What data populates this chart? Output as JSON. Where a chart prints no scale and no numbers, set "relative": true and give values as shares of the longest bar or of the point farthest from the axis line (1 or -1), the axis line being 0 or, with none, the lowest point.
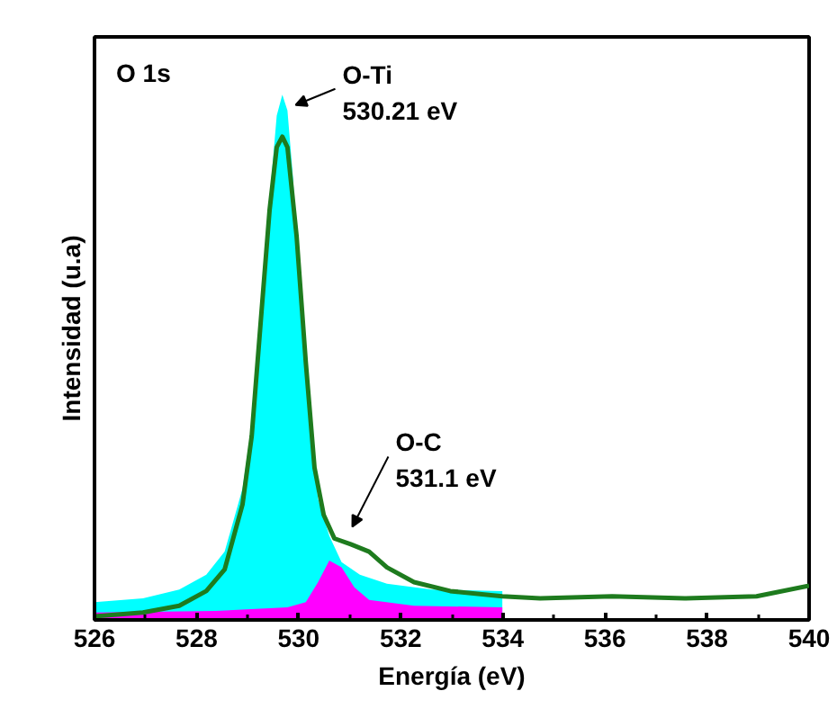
{
  "chart_data": {
    "type": "area",
    "relative": true,
    "xlabel": "Energía (eV)",
    "ylabel": "Intensidad (u.a)",
    "xlim": [
      526,
      540
    ],
    "xticks": [
      526,
      {
        "value": 527,
        "label": null
      },
      528,
      {
        "value": 529,
        "label": null
      },
      530,
      {
        "value": 531,
        "label": null
      },
      532,
      {
        "value": 533,
        "label": null
      },
      534,
      {
        "value": 535,
        "label": null
      },
      536,
      {
        "value": 537,
        "label": null
      },
      538,
      {
        "value": 539,
        "label": null
      },
      540
    ],
    "grid": false,
    "tick_labels": "x",
    "annotations": [
      "O 1s",
      {
        "text": "O-Ti\n530.21 eV",
        "x": 529.8,
        "y": 0.97
      },
      {
        "text": "O-C\n531.1 eV",
        "x": 530.84,
        "y": 0.15
      }
    ],
    "series": [
      {
        "color": "#00ffff",
        "x": [
          526.0,
          526.95,
          527.66,
          528.19,
          528.55,
          528.9,
          529.08,
          529.25,
          529.43,
          529.57,
          529.68,
          529.78,
          529.89,
          530.03,
          530.21,
          530.38,
          530.6,
          530.84,
          531.2,
          531.73,
          532.61,
          533.99
        ],
        "values": [
          0.034,
          0.041,
          0.058,
          0.086,
          0.13,
          0.25,
          0.37,
          0.56,
          0.8,
          0.96,
          1.0,
          0.97,
          0.84,
          0.59,
          0.37,
          0.23,
          0.16,
          0.11,
          0.086,
          0.069,
          0.058,
          0.055
        ]
      },
      {
        "color": "#ff00ff",
        "x": [
          526.0,
          528.37,
          529.78,
          530.14,
          530.38,
          530.6,
          530.84,
          531.09,
          531.38,
          532.26,
          533.99
        ],
        "values": [
          0.014,
          0.017,
          0.024,
          0.034,
          0.072,
          0.113,
          0.1,
          0.062,
          0.038,
          0.027,
          0.024
        ]
      },
      {
        "type": "line",
        "color": "#1e7b1e",
        "x": [
          526.0,
          526.95,
          527.66,
          528.19,
          528.55,
          528.9,
          529.08,
          529.25,
          529.43,
          529.57,
          529.68,
          529.78,
          529.96,
          530.14,
          530.31,
          530.49,
          530.7,
          531.02,
          531.38,
          531.73,
          532.26,
          532.97,
          533.99,
          534.73,
          536.14,
          537.56,
          538.97,
          540.0
        ],
        "values": [
          0.007,
          0.014,
          0.027,
          0.055,
          0.096,
          0.22,
          0.35,
          0.56,
          0.78,
          0.9,
          0.92,
          0.9,
          0.73,
          0.49,
          0.29,
          0.2,
          0.155,
          0.144,
          0.13,
          0.1,
          0.072,
          0.055,
          0.045,
          0.041,
          0.045,
          0.041,
          0.045,
          0.065
        ]
      }
    ]
  }
}
